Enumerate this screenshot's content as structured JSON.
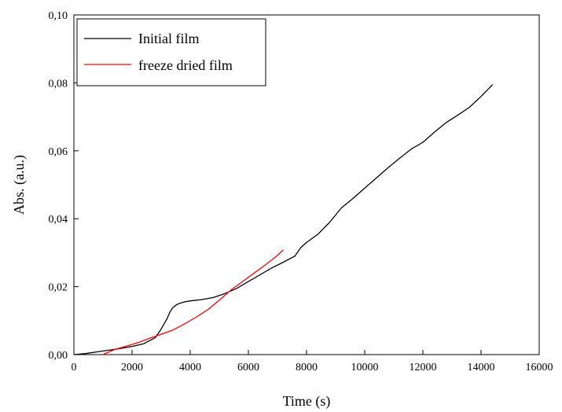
{
  "chart_data": {
    "type": "line",
    "xlabel": "Time (s)",
    "ylabel": "Abs. (a.u.)",
    "xlim": [
      0,
      16000
    ],
    "ylim": [
      0,
      0.1
    ],
    "x_ticks": [
      "0",
      "2000",
      "4000",
      "6000",
      "8000",
      "10000",
      "12000",
      "14000",
      "16000"
    ],
    "y_ticks": [
      "0,00",
      "0,02",
      "0,04",
      "0,06",
      "0,08",
      "0,10"
    ],
    "grid": false,
    "legend_position": "top-left",
    "series": [
      {
        "name": "Initial film",
        "color": "#000000",
        "x": [
          0,
          400,
          800,
          1200,
          1600,
          2000,
          2400,
          2800,
          3000,
          3200,
          3300,
          3400,
          3500,
          3600,
          3800,
          4000,
          4400,
          4800,
          5200,
          5600,
          6000,
          6400,
          6800,
          7200,
          7600,
          7800,
          8000,
          8400,
          8800,
          9200,
          9600,
          10000,
          10400,
          10800,
          11200,
          11600,
          12000,
          12400,
          12800,
          13200,
          13600,
          14000,
          14400
        ],
        "y": [
          0.0,
          0.0003,
          0.0008,
          0.0013,
          0.0018,
          0.0024,
          0.0032,
          0.005,
          0.0075,
          0.0105,
          0.0125,
          0.0138,
          0.0145,
          0.015,
          0.0155,
          0.0158,
          0.0162,
          0.0168,
          0.018,
          0.0195,
          0.0215,
          0.0235,
          0.0255,
          0.0272,
          0.029,
          0.0315,
          0.033,
          0.0355,
          0.039,
          0.0432,
          0.046,
          0.049,
          0.052,
          0.055,
          0.0578,
          0.0605,
          0.0625,
          0.0655,
          0.0683,
          0.0705,
          0.0728,
          0.076,
          0.0795
        ]
      },
      {
        "name": "freeze dried film",
        "color": "#ff0000",
        "x": [
          1000,
          1400,
          1800,
          2200,
          2600,
          3000,
          3400,
          3800,
          4200,
          4600,
          5000,
          5400,
          5800,
          6200,
          6600,
          7000,
          7200
        ],
        "y": [
          0.0,
          0.0015,
          0.0025,
          0.0035,
          0.0048,
          0.006,
          0.0072,
          0.009,
          0.011,
          0.0132,
          0.016,
          0.019,
          0.0215,
          0.024,
          0.0265,
          0.0292,
          0.0308
        ]
      }
    ]
  }
}
